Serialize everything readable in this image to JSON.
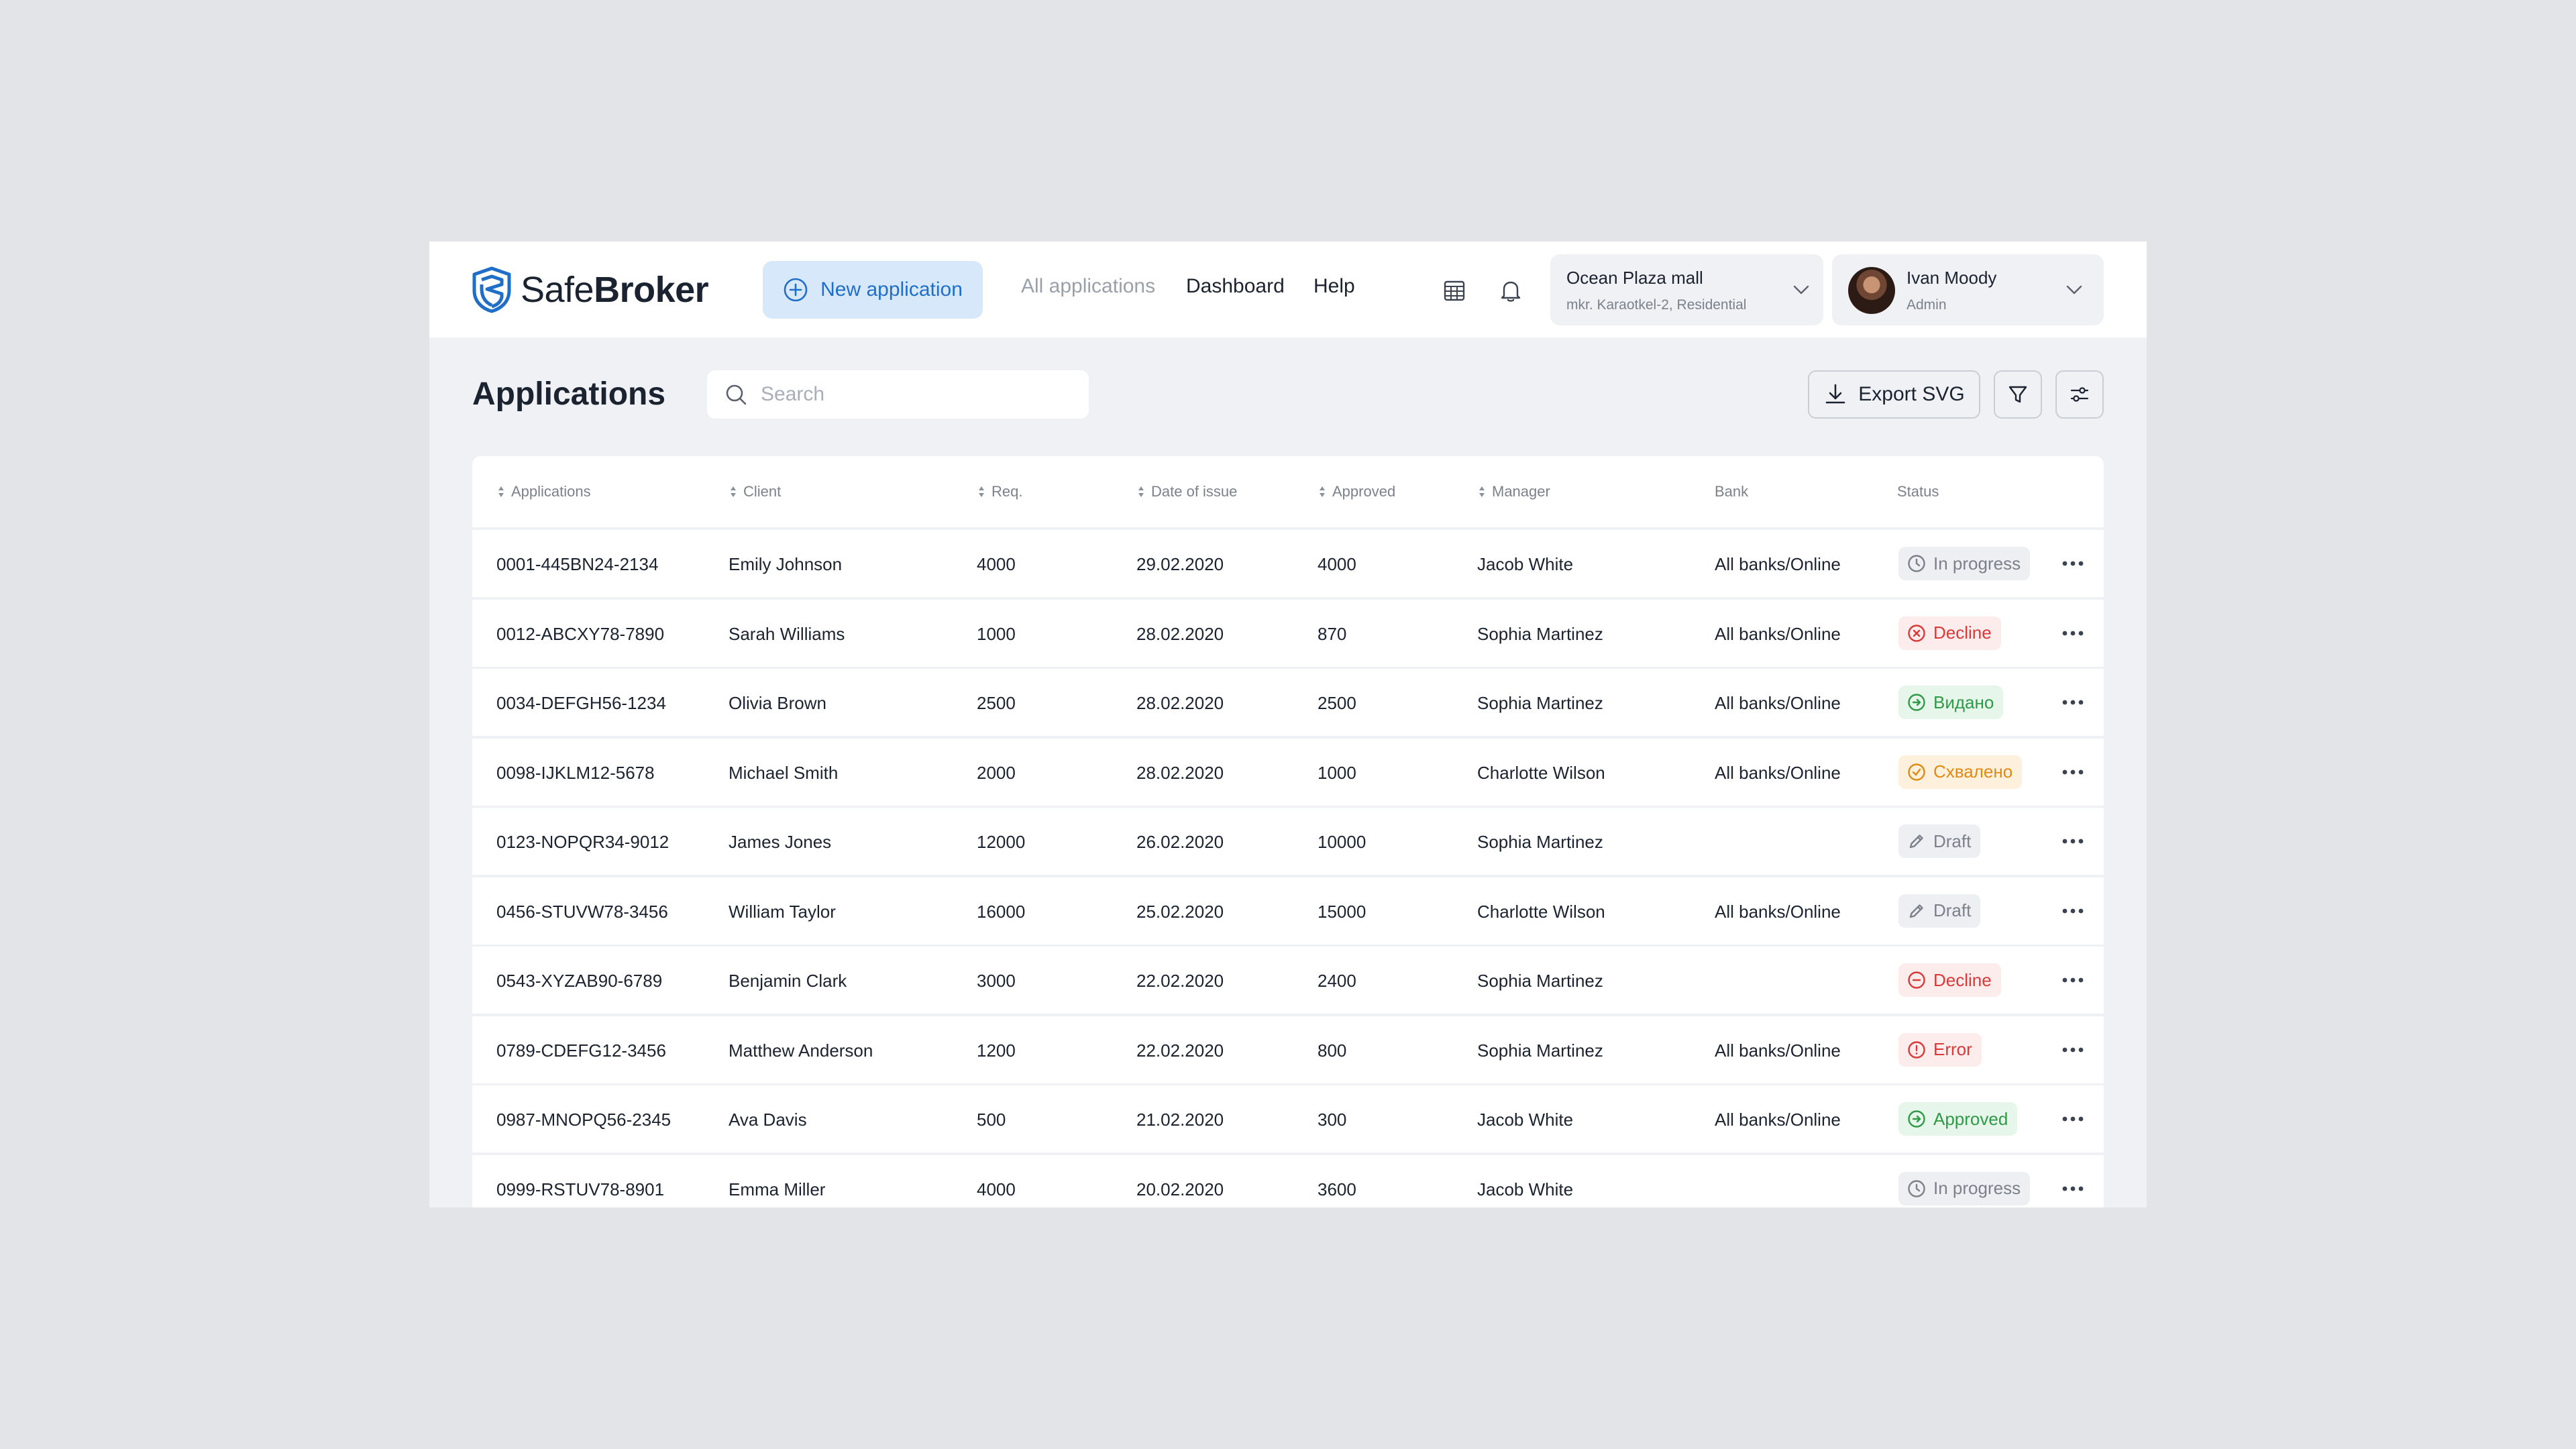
{
  "header": {
    "logo": {
      "light": "Safe",
      "bold": "Broker"
    },
    "new_application_label": "New application",
    "nav": [
      {
        "label": "All applications"
      },
      {
        "label": "Dashboard"
      },
      {
        "label": "Help"
      }
    ],
    "location": {
      "title": "Ocean Plaza mall",
      "subtitle": "mkr. Karaotkel-2, Residential"
    },
    "user": {
      "name": "Ivan Moody",
      "role": "Admin"
    }
  },
  "toolbar": {
    "title": "Applications",
    "search_placeholder": "Search",
    "export_label": "Export SVG"
  },
  "table": {
    "columns": [
      "Applications",
      "Client",
      "Req.",
      "Date of issue",
      "Approved",
      "Manager",
      "Bank",
      "Status"
    ],
    "rows": [
      {
        "id": "0001-445BN24-2134",
        "client": "Emily Johnson",
        "req": "4000",
        "date": "29.02.2020",
        "approved": "4000",
        "manager": "Jacob White",
        "bank": "All banks/Online",
        "status": "In progress",
        "status_kind": "progress"
      },
      {
        "id": "0012-ABCXY78-7890",
        "client": "Sarah Williams",
        "req": "1000",
        "date": "28.02.2020",
        "approved": "870",
        "manager": "Sophia Martinez",
        "bank": "All banks/Online",
        "status": "Decline",
        "status_kind": "decline-x"
      },
      {
        "id": "0034-DEFGH56-1234",
        "client": "Olivia Brown",
        "req": "2500",
        "date": "28.02.2020",
        "approved": "2500",
        "manager": "Sophia Martinez",
        "bank": "All banks/Online",
        "status": "Видано",
        "status_kind": "issued"
      },
      {
        "id": "0098-IJKLM12-5678",
        "client": "Michael Smith",
        "req": "2000",
        "date": "28.02.2020",
        "approved": "1000",
        "manager": "Charlotte Wilson",
        "bank": "All banks/Online",
        "status": "Схвалено",
        "status_kind": "approved-orange"
      },
      {
        "id": "0123-NOPQR34-9012",
        "client": "James Jones",
        "req": "12000",
        "date": "26.02.2020",
        "approved": "10000",
        "manager": "Sophia Martinez",
        "bank": "",
        "status": "Draft",
        "status_kind": "draft"
      },
      {
        "id": "0456-STUVW78-3456",
        "client": "William Taylor",
        "req": "16000",
        "date": "25.02.2020",
        "approved": "15000",
        "manager": "Charlotte Wilson",
        "bank": "All banks/Online",
        "status": "Draft",
        "status_kind": "draft"
      },
      {
        "id": "0543-XYZAB90-6789",
        "client": "Benjamin Clark",
        "req": "3000",
        "date": "22.02.2020",
        "approved": "2400",
        "manager": "Sophia Martinez",
        "bank": "",
        "status": "Decline",
        "status_kind": "decline-minus"
      },
      {
        "id": "0789-CDEFG12-3456",
        "client": "Matthew Anderson",
        "req": "1200",
        "date": "22.02.2020",
        "approved": "800",
        "manager": "Sophia Martinez",
        "bank": "All banks/Online",
        "status": "Error",
        "status_kind": "error"
      },
      {
        "id": "0987-MNOPQ56-2345",
        "client": "Ava Davis",
        "req": "500",
        "date": "21.02.2020",
        "approved": "300",
        "manager": "Jacob White",
        "bank": "All banks/Online",
        "status": "Approved",
        "status_kind": "issued"
      },
      {
        "id": "0999-RSTUV78-8901",
        "client": "Emma Miller",
        "req": "4000",
        "date": "20.02.2020",
        "approved": "3600",
        "manager": "Jacob White",
        "bank": "",
        "status": "In progress",
        "status_kind": "progress"
      }
    ]
  },
  "colors": {
    "accent": "#1f6fc9",
    "accent_bg": "#d7e8fa",
    "progress": "#7b818b",
    "decline": "#d83a3a",
    "issued": "#2f9a47",
    "approved_orange": "#e08a12"
  },
  "icons": {
    "logo": "shield-logo-icon",
    "new_application": "plus-circle-icon",
    "calendar": "calendar-icon",
    "notifications": "bell-icon",
    "dropdown": "chevron-down-icon",
    "search": "search-icon",
    "export": "download-icon",
    "filter": "filter-icon",
    "settings": "sliders-icon",
    "sort": "sort-icon",
    "row_menu": "more-horizontal-icon"
  }
}
